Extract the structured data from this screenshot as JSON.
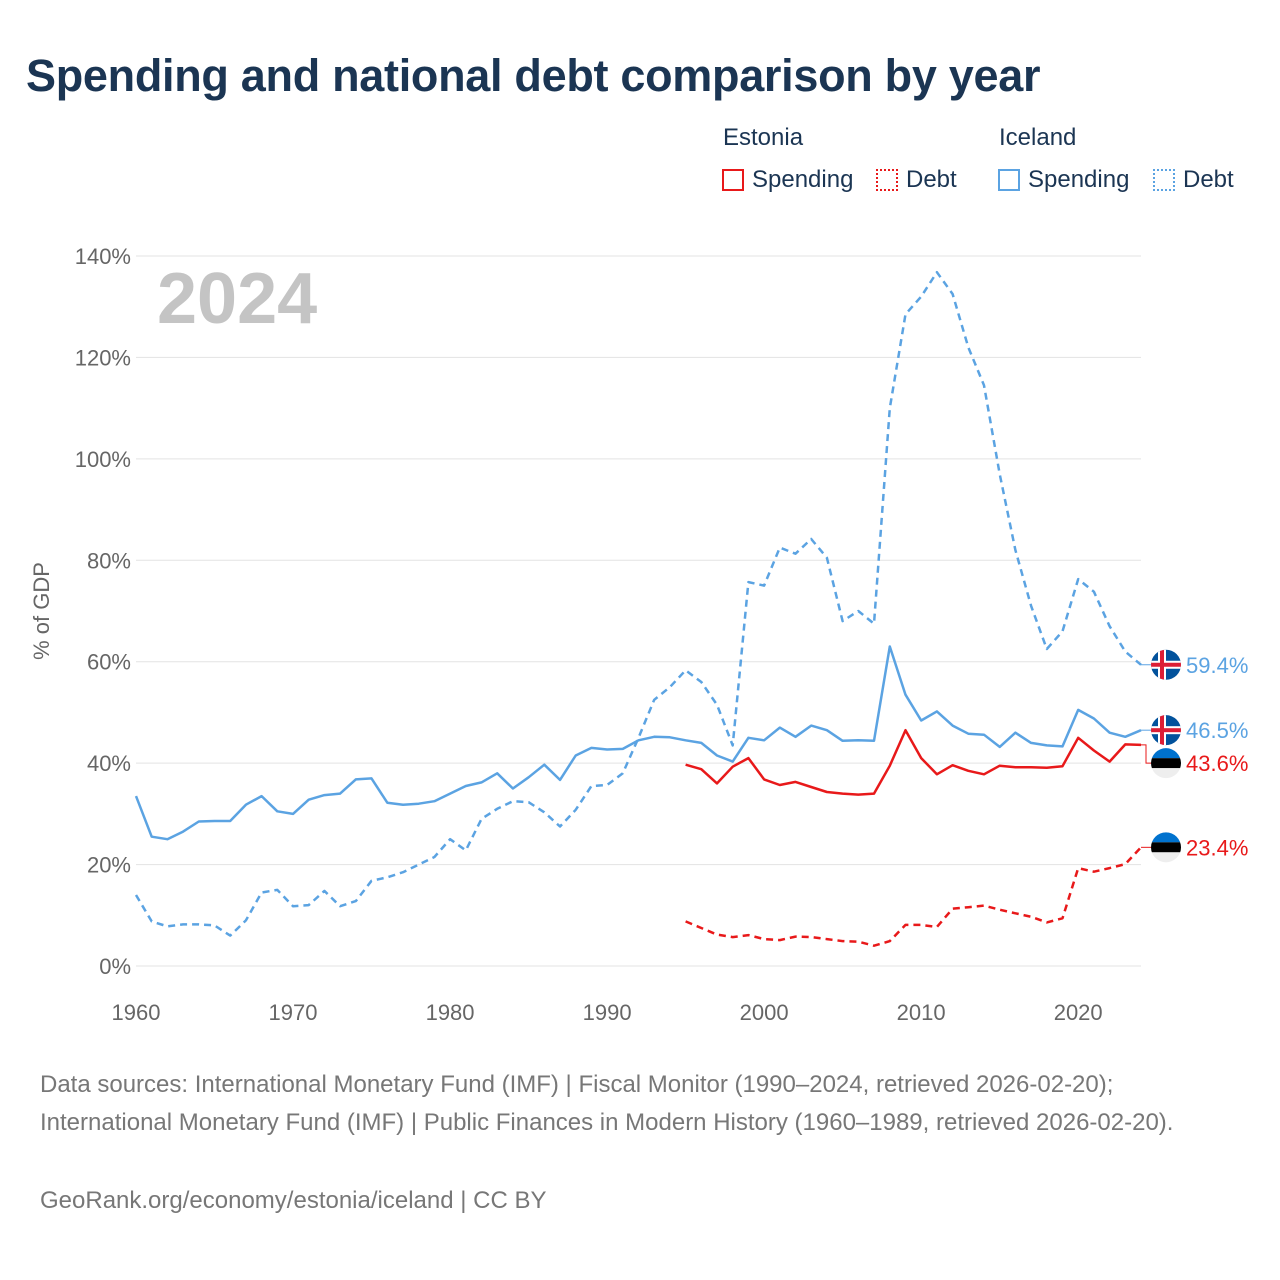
{
  "title": "Spending and national debt comparison by year",
  "legend": {
    "groups": [
      {
        "name": "Estonia",
        "color": "#e8191a",
        "items": [
          {
            "label": "Spending",
            "style": "solid"
          },
          {
            "label": "Debt",
            "style": "dotted"
          }
        ]
      },
      {
        "name": "Iceland",
        "color": "#5ba3e2",
        "items": [
          {
            "label": "Spending",
            "style": "solid"
          },
          {
            "label": "Debt",
            "style": "dotted"
          }
        ]
      }
    ]
  },
  "chart_data": {
    "type": "line",
    "current_year_label": "2024",
    "ylabel": "% of GDP",
    "xlabel": "",
    "xlim": [
      1960,
      2024
    ],
    "ylim": [
      0,
      140
    ],
    "x_ticks": [
      1960,
      1970,
      1980,
      1990,
      2000,
      2010,
      2020
    ],
    "y_ticks": [
      {
        "value": 0,
        "label": "0%"
      },
      {
        "value": 20,
        "label": "20%"
      },
      {
        "value": 40,
        "label": "40%"
      },
      {
        "value": 60,
        "label": "60%"
      },
      {
        "value": 80,
        "label": "80%"
      },
      {
        "value": 100,
        "label": "100%"
      },
      {
        "value": 120,
        "label": "120%"
      },
      {
        "value": 140,
        "label": "140%"
      }
    ],
    "grid": true,
    "series": [
      {
        "name": "Iceland Spending",
        "country": "Iceland",
        "flag": "iceland-flag",
        "color": "#5ba3e2",
        "dash": "solid",
        "end_label": "46.5%",
        "x": [
          1960,
          1961,
          1962,
          1963,
          1964,
          1965,
          1966,
          1967,
          1968,
          1969,
          1970,
          1971,
          1972,
          1973,
          1974,
          1975,
          1976,
          1977,
          1978,
          1979,
          1980,
          1981,
          1982,
          1983,
          1984,
          1985,
          1986,
          1987,
          1988,
          1989,
          1990,
          1991,
          1992,
          1993,
          1994,
          1995,
          1996,
          1997,
          1998,
          1999,
          2000,
          2001,
          2002,
          2003,
          2004,
          2005,
          2006,
          2007,
          2008,
          2009,
          2010,
          2011,
          2012,
          2013,
          2014,
          2015,
          2016,
          2017,
          2018,
          2019,
          2020,
          2021,
          2022,
          2023,
          2024
        ],
        "values": [
          33.5,
          25.5,
          25.0,
          26.5,
          28.5,
          28.6,
          28.6,
          31.8,
          33.5,
          30.5,
          30.0,
          32.8,
          33.7,
          34.0,
          36.8,
          37.0,
          32.2,
          31.8,
          32.0,
          32.5,
          34.0,
          35.5,
          36.2,
          38.0,
          35.0,
          37.2,
          39.7,
          36.7,
          41.5,
          43.0,
          42.7,
          42.8,
          44.5,
          45.2,
          45.1,
          44.5,
          44.0,
          41.5,
          40.3,
          45.0,
          44.5,
          47.0,
          45.2,
          47.4,
          46.5,
          44.4,
          44.5,
          44.4,
          63.0,
          53.5,
          48.4,
          50.2,
          47.4,
          45.8,
          45.6,
          43.2,
          46.0,
          44.0,
          43.5,
          43.3,
          50.5,
          48.8,
          46.0,
          45.2,
          46.5
        ]
      },
      {
        "name": "Iceland Debt",
        "country": "Iceland",
        "flag": "iceland-flag",
        "color": "#5ba3e2",
        "dash": "dashed",
        "end_label": "59.4%",
        "x": [
          1960,
          1961,
          1962,
          1963,
          1964,
          1965,
          1966,
          1967,
          1968,
          1969,
          1970,
          1971,
          1972,
          1973,
          1974,
          1975,
          1976,
          1977,
          1978,
          1979,
          1980,
          1981,
          1982,
          1983,
          1984,
          1985,
          1986,
          1987,
          1988,
          1989,
          1990,
          1991,
          1992,
          1993,
          1994,
          1995,
          1996,
          1997,
          1998,
          1999,
          2000,
          2001,
          2002,
          2003,
          2004,
          2005,
          2006,
          2007,
          2008,
          2009,
          2010,
          2011,
          2012,
          2013,
          2014,
          2015,
          2016,
          2017,
          2018,
          2019,
          2020,
          2021,
          2022,
          2023,
          2024
        ],
        "values": [
          14.0,
          8.8,
          7.8,
          8.2,
          8.2,
          8.0,
          6.0,
          9.0,
          14.5,
          15.0,
          11.8,
          12.0,
          14.8,
          11.8,
          12.8,
          16.8,
          17.5,
          18.5,
          20.0,
          21.5,
          25.0,
          22.8,
          29.0,
          31.0,
          32.5,
          32.3,
          30.3,
          27.5,
          30.8,
          35.5,
          35.7,
          38.0,
          45.0,
          52.5,
          55.0,
          58.3,
          56.0,
          51.5,
          43.5,
          75.7,
          75.0,
          82.5,
          81.3,
          84.2,
          80.5,
          68.0,
          70.0,
          67.5,
          110.0,
          128.5,
          132.0,
          136.8,
          132.5,
          122.0,
          114.5,
          97.0,
          82.0,
          71.0,
          62.5,
          66.0,
          76.3,
          73.8,
          67.0,
          62.0,
          59.4
        ]
      },
      {
        "name": "Estonia Spending",
        "country": "Estonia",
        "flag": "estonia-flag",
        "color": "#e8191a",
        "dash": "solid",
        "end_label": "43.6%",
        "x": [
          1995,
          1996,
          1997,
          1998,
          1999,
          2000,
          2001,
          2002,
          2003,
          2004,
          2005,
          2006,
          2007,
          2008,
          2009,
          2010,
          2011,
          2012,
          2013,
          2014,
          2015,
          2016,
          2017,
          2018,
          2019,
          2020,
          2021,
          2022,
          2023,
          2024
        ],
        "values": [
          39.7,
          38.8,
          36.0,
          39.3,
          41.0,
          36.8,
          35.7,
          36.3,
          35.3,
          34.3,
          34.0,
          33.8,
          34.0,
          39.5,
          46.5,
          41.0,
          37.8,
          39.6,
          38.5,
          37.8,
          39.5,
          39.2,
          39.2,
          39.1,
          39.4,
          45.0,
          42.5,
          40.3,
          43.7,
          43.6
        ]
      },
      {
        "name": "Estonia Debt",
        "country": "Estonia",
        "flag": "estonia-flag",
        "color": "#e8191a",
        "dash": "dashed",
        "end_label": "23.4%",
        "x": [
          1995,
          1996,
          1997,
          1998,
          1999,
          2000,
          2001,
          2002,
          2003,
          2004,
          2005,
          2006,
          2007,
          2008,
          2009,
          2010,
          2011,
          2012,
          2013,
          2014,
          2015,
          2016,
          2017,
          2018,
          2019,
          2020,
          2021,
          2022,
          2023,
          2024
        ],
        "values": [
          8.8,
          7.5,
          6.2,
          5.7,
          6.1,
          5.3,
          5.1,
          5.8,
          5.7,
          5.3,
          4.9,
          4.8,
          4.0,
          4.9,
          8.1,
          8.1,
          7.7,
          11.3,
          11.6,
          11.9,
          11.1,
          10.4,
          9.7,
          8.6,
          9.4,
          19.3,
          18.6,
          19.3,
          20.1,
          23.4
        ]
      }
    ]
  },
  "footer": {
    "sources": "Data sources: International Monetary Fund (IMF) | Fiscal Monitor (1990–2024, retrieved 2026-02-20); International Monetary Fund (IMF) | Public Finances in Modern History (1960–1989, retrieved 2026-02-20).",
    "credit": "GeoRank.org/economy/estonia/iceland | CC BY"
  }
}
